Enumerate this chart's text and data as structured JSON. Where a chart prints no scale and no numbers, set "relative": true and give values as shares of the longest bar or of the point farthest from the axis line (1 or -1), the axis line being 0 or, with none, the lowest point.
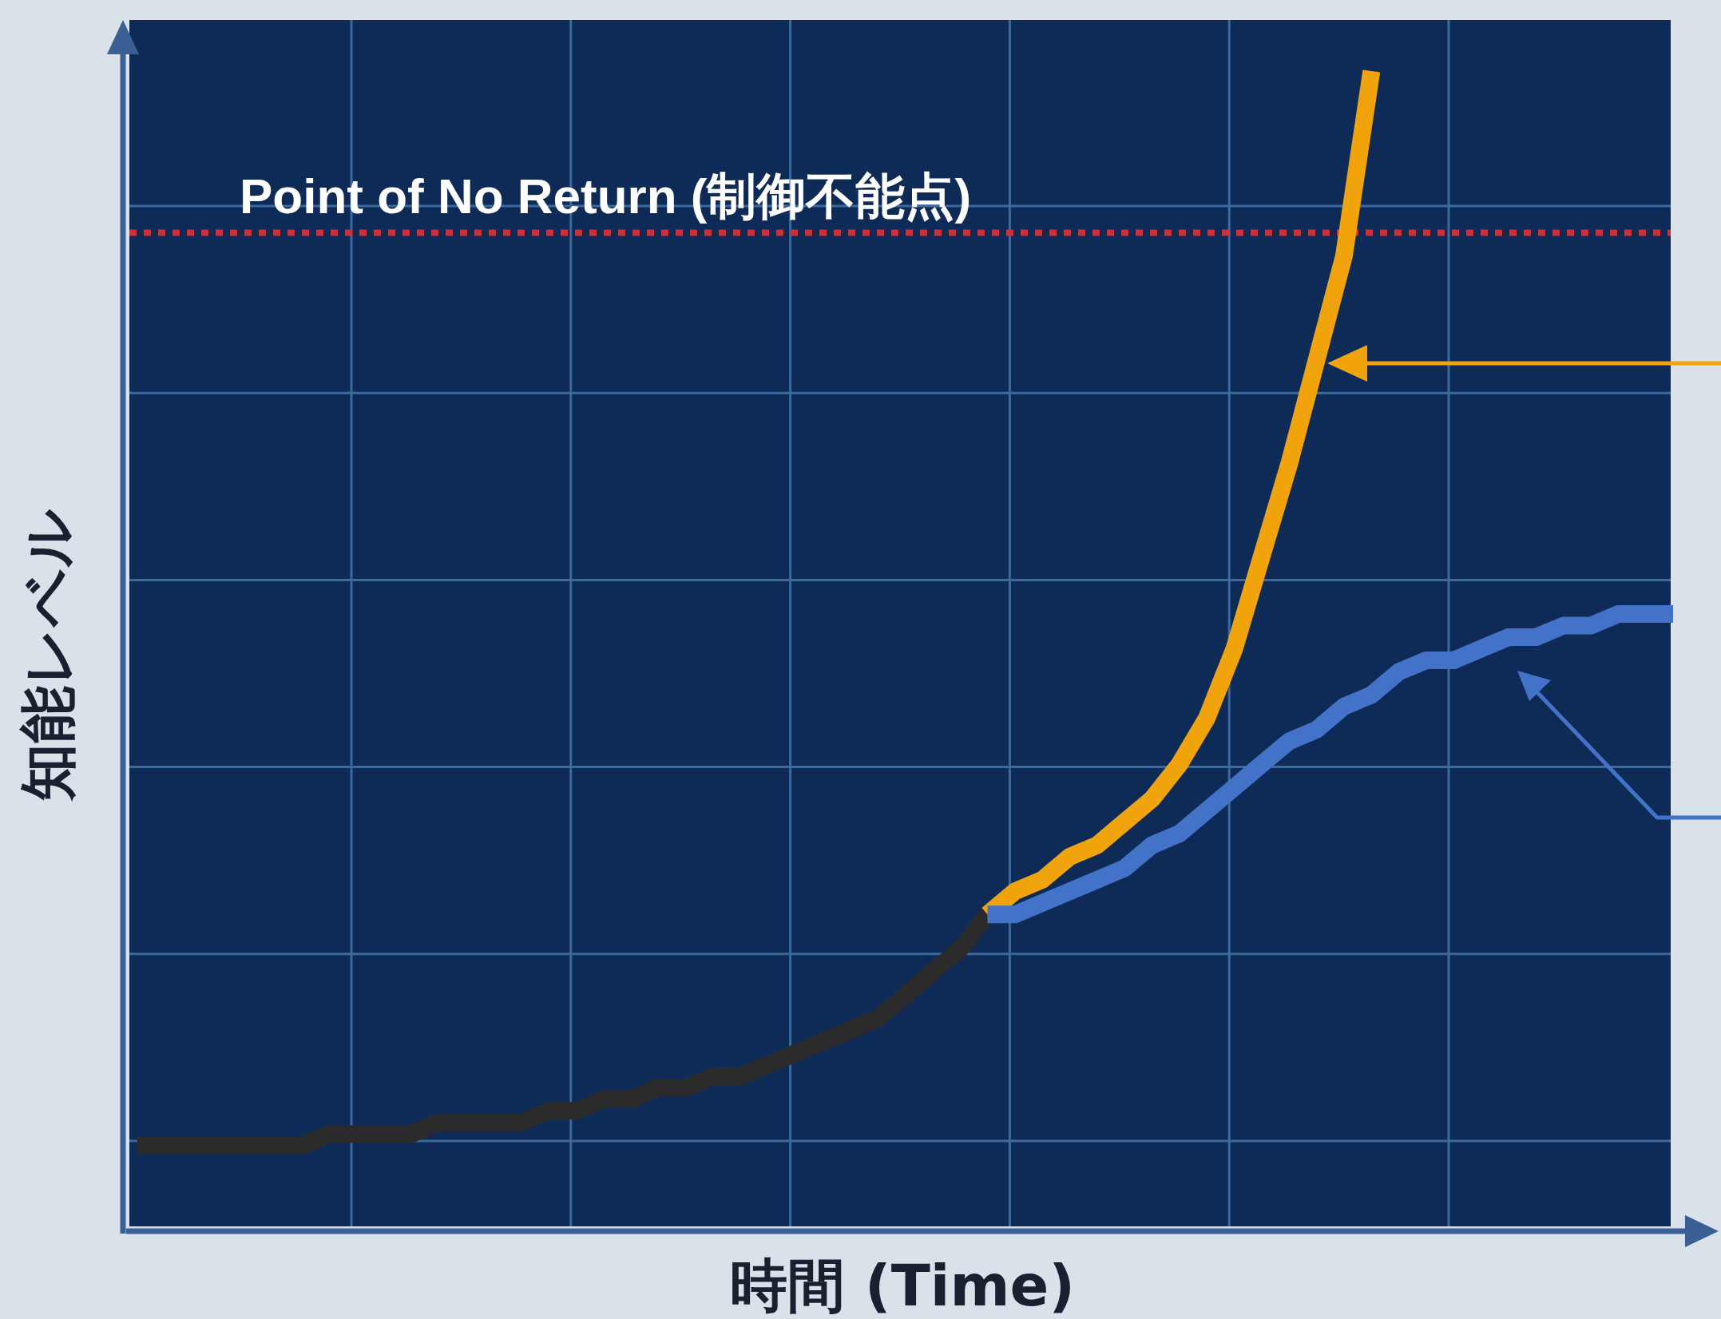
{
  "chart_data": {
    "type": "line",
    "relative": true,
    "xlabel": "時間 (Time)",
    "ylabel": "知能レベル",
    "grid": true,
    "categories": [
      null,
      null,
      null,
      null,
      null,
      null,
      null,
      null,
      null,
      null,
      null,
      null,
      null,
      null,
      null,
      null,
      null,
      null,
      null,
      null,
      null,
      null,
      null,
      null,
      null,
      null,
      null,
      null,
      null,
      null,
      null,
      null,
      null,
      null,
      null,
      null,
      null,
      null,
      null,
      null,
      null,
      null,
      null,
      null,
      null,
      null,
      null,
      null,
      null,
      null,
      null,
      null,
      null,
      null,
      null,
      null,
      null
    ],
    "series": [
      {
        "color": "#2b2b2b",
        "values": [
          0.07,
          0.07,
          0.07,
          0.07,
          0.07,
          0.07,
          0.07,
          0.08,
          0.08,
          0.08,
          0.08,
          0.09,
          0.09,
          0.09,
          0.09,
          0.1,
          0.1,
          0.11,
          0.11,
          0.12,
          0.12,
          0.13,
          0.13,
          0.14,
          0.15,
          0.16,
          0.17,
          0.18,
          0.2,
          0.22,
          0.24,
          0.27,
          null,
          null,
          null,
          null,
          null,
          null,
          null,
          null,
          null,
          null,
          null,
          null,
          null,
          null,
          null,
          null,
          null,
          null,
          null,
          null,
          null,
          null,
          null,
          null,
          null
        ]
      },
      {
        "color": "#f0a30a",
        "values": [
          null,
          null,
          null,
          null,
          null,
          null,
          null,
          null,
          null,
          null,
          null,
          null,
          null,
          null,
          null,
          null,
          null,
          null,
          null,
          null,
          null,
          null,
          null,
          null,
          null,
          null,
          null,
          null,
          null,
          null,
          null,
          0.27,
          0.29,
          0.3,
          0.32,
          0.33,
          0.35,
          0.37,
          0.4,
          0.44,
          0.5,
          0.58,
          0.66,
          0.75,
          0.84,
          1.0,
          null,
          null,
          null,
          null,
          null,
          null,
          null,
          null,
          null,
          null,
          null
        ]
      },
      {
        "color": "#4373c8",
        "values": [
          null,
          null,
          null,
          null,
          null,
          null,
          null,
          null,
          null,
          null,
          null,
          null,
          null,
          null,
          null,
          null,
          null,
          null,
          null,
          null,
          null,
          null,
          null,
          null,
          null,
          null,
          null,
          null,
          null,
          null,
          null,
          0.27,
          0.27,
          0.28,
          0.29,
          0.3,
          0.31,
          0.33,
          0.34,
          0.36,
          0.38,
          0.4,
          0.42,
          0.43,
          0.45,
          0.46,
          0.48,
          0.49,
          0.49,
          0.5,
          0.51,
          0.51,
          0.52,
          0.52,
          0.53,
          0.53,
          0.53
        ]
      }
    ],
    "ref_lines": [
      {
        "axis": "y",
        "value": 0.86,
        "label": "Point of No Return (制御不能点)",
        "color": "#c8323c",
        "line_style": "dotted"
      }
    ]
  }
}
